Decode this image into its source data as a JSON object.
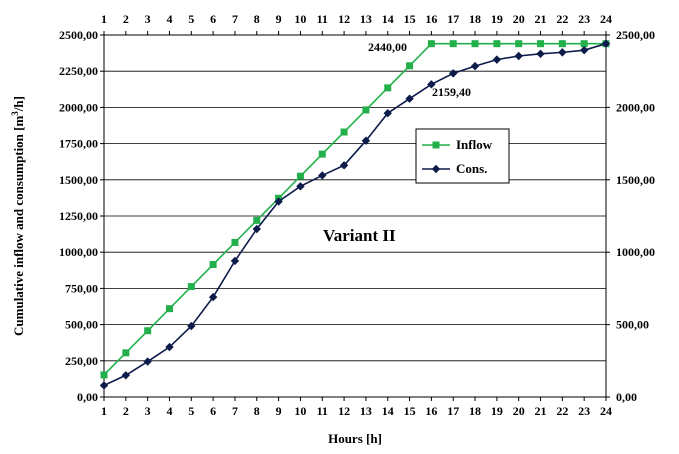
{
  "chart_data": {
    "type": "line",
    "x": [
      1,
      2,
      3,
      4,
      5,
      6,
      7,
      8,
      9,
      10,
      11,
      12,
      13,
      14,
      15,
      16,
      17,
      18,
      19,
      20,
      21,
      22,
      23,
      24
    ],
    "xlabel": "Hours [h]",
    "ylabel_prefix": "Cumulative inflow and consumption [m",
    "ylabel_sup": "3",
    "ylabel_suffix": "/h]",
    "ylim": [
      0,
      2500
    ],
    "y_ticks": [
      "0,00",
      "250,00",
      "500,00",
      "750,00",
      "1000,00",
      "1250,00",
      "1500,00",
      "1750,00",
      "2000,00",
      "2250,00",
      "2500,00"
    ],
    "y2_ticks": [
      "0,00",
      "500,00",
      "1000,00",
      "1500,00",
      "2000,00",
      "2500,00"
    ],
    "grid": true,
    "legend_position": "center-right",
    "series": [
      {
        "name": "Inflow",
        "color": "#22b04b",
        "marker": "square",
        "values": [
          152.5,
          305,
          457.5,
          610,
          762.5,
          915,
          1067.5,
          1220,
          1372.5,
          1525,
          1677.5,
          1830,
          1982.5,
          2135,
          2287.5,
          2440,
          2440,
          2440,
          2440,
          2440,
          2440,
          2440,
          2440,
          2440
        ]
      },
      {
        "name": "Cons.",
        "color": "#0d1b4a",
        "marker": "diamond",
        "values": [
          80,
          150,
          245,
          345,
          490,
          690,
          940,
          1160,
          1350,
          1455,
          1530,
          1600,
          1770,
          1960,
          2060,
          2159.4,
          2235,
          2285,
          2330,
          2355,
          2370,
          2380,
          2395,
          2440
        ]
      }
    ],
    "annotations": [
      "2440,00",
      "2159,40"
    ],
    "inner_label": "Variant II"
  }
}
